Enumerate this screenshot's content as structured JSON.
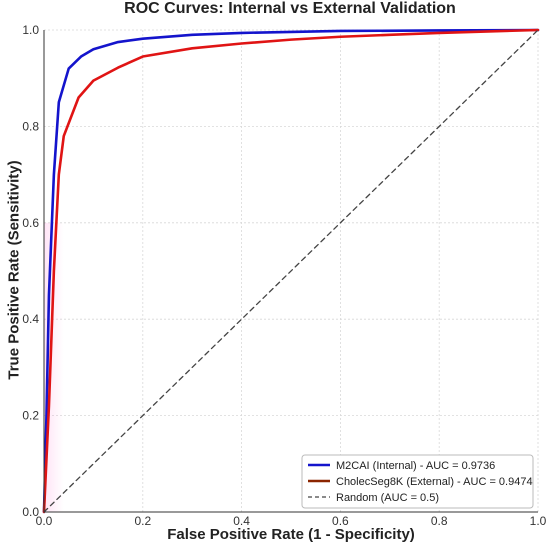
{
  "chart_data": {
    "type": "line",
    "title": "ROC Curves: Internal vs External Validation",
    "xlabel": "False Positive Rate (1 - Specificity)",
    "ylabel": "True Positive Rate (Sensitivity)",
    "xlim": [
      0.0,
      1.0
    ],
    "ylim": [
      0.0,
      1.0
    ],
    "xticks": [
      "0.0",
      "0.2",
      "0.4",
      "0.6",
      "0.8",
      "1.0"
    ],
    "yticks": [
      "0.0",
      "0.2",
      "0.4",
      "0.6",
      "0.8",
      "1.0"
    ],
    "grid": true,
    "legend_position": "lower-right",
    "series": [
      {
        "name": "M2CAI (Internal) - AUC = 0.9736",
        "color": "#1414cc",
        "x": [
          0.0,
          0.005,
          0.01,
          0.02,
          0.03,
          0.05,
          0.075,
          0.1,
          0.15,
          0.2,
          0.3,
          0.4,
          0.5,
          0.6,
          0.8,
          1.0
        ],
        "y": [
          0.0,
          0.2,
          0.45,
          0.7,
          0.85,
          0.92,
          0.945,
          0.96,
          0.975,
          0.982,
          0.99,
          0.994,
          0.996,
          0.998,
          0.999,
          1.0
        ]
      },
      {
        "name": "CholecSeg8K (External) - AUC = 0.9474",
        "color": "#e01414",
        "x": [
          0.0,
          0.01,
          0.02,
          0.03,
          0.04,
          0.07,
          0.1,
          0.15,
          0.2,
          0.3,
          0.4,
          0.5,
          0.6,
          0.7,
          0.8,
          0.9,
          1.0
        ],
        "y": [
          0.0,
          0.22,
          0.5,
          0.7,
          0.78,
          0.86,
          0.895,
          0.922,
          0.945,
          0.962,
          0.972,
          0.98,
          0.986,
          0.99,
          0.994,
          0.997,
          1.0
        ]
      },
      {
        "name": "Random (AUC = 0.5)",
        "color": "#444444",
        "dashed": true,
        "x": [
          0.0,
          1.0
        ],
        "y": [
          0.0,
          1.0
        ]
      }
    ]
  }
}
